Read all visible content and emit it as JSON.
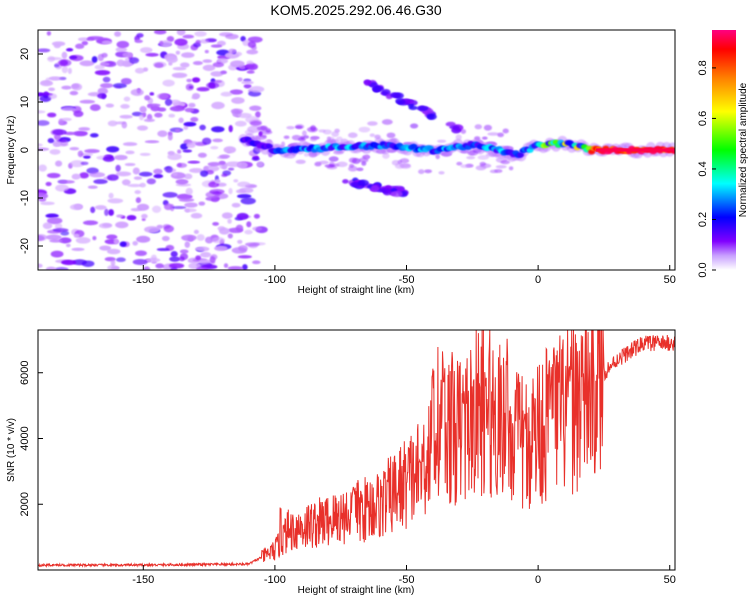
{
  "title": "KOM5.2025.292.06.46.G30",
  "chart_data": [
    {
      "type": "heatmap",
      "name": "spectrogram",
      "xlabel": "Height of straight line (km)",
      "ylabel": "Frequency (Hz)",
      "xlim": [
        -190,
        52
      ],
      "ylim": [
        -25,
        25
      ],
      "xticks": [
        -150,
        -100,
        -50,
        0,
        50
      ],
      "yticks": [
        -20,
        -10,
        0,
        10,
        20
      ],
      "colorbar": {
        "label": "Normalized spectral amplitude",
        "range": [
          0,
          0.95
        ],
        "ticks": [
          0.0,
          0.2,
          0.4,
          0.6,
          0.8
        ],
        "tick_labels": [
          "0.0",
          "0.2",
          "0.4",
          "0.6",
          "0.8"
        ],
        "colormap": [
          "#ffffff",
          "#8000ff",
          "#0000ff",
          "#00ffff",
          "#00ff00",
          "#ffff00",
          "#ff8000",
          "#ff0000",
          "#ff0080"
        ]
      },
      "description_features": {
        "noise_region_x": [
          -190,
          -105
        ],
        "main_track": [
          [
            -110,
            2
          ],
          [
            -100,
            0
          ],
          [
            -80,
            0.5
          ],
          [
            -60,
            1
          ],
          [
            -40,
            0
          ],
          [
            -25,
            1
          ],
          [
            -15,
            0
          ],
          [
            -8,
            -1
          ],
          [
            0,
            1
          ],
          [
            10,
            1.5
          ],
          [
            20,
            0
          ],
          [
            52,
            0
          ]
        ],
        "branch_upper": [
          [
            -65,
            14
          ],
          [
            -50,
            10
          ],
          [
            -40,
            7
          ],
          [
            -30,
            4
          ]
        ],
        "branch_lower": [
          [
            -75,
            -6
          ],
          [
            -60,
            -8
          ],
          [
            -50,
            -9
          ]
        ]
      }
    },
    {
      "type": "line",
      "name": "snr",
      "color": "#e8302a",
      "xlabel": "Height of straight line (km)",
      "ylabel": "SNR (10 * v/v)",
      "xlim": [
        -190,
        52
      ],
      "ylim": [
        0,
        7300
      ],
      "xticks": [
        -150,
        -100,
        -50,
        0,
        50
      ],
      "yticks": [
        2000,
        4000,
        6000
      ],
      "envelope": [
        [
          -190,
          150
        ],
        [
          -150,
          150
        ],
        [
          -110,
          180
        ],
        [
          -100,
          600
        ],
        [
          -95,
          1200
        ],
        [
          -80,
          1500
        ],
        [
          -60,
          2000
        ],
        [
          -45,
          3000
        ],
        [
          -38,
          4500
        ],
        [
          -30,
          4200
        ],
        [
          -20,
          5000
        ],
        [
          -12,
          4200
        ],
        [
          -5,
          3800
        ],
        [
          0,
          4300
        ],
        [
          10,
          4800
        ],
        [
          20,
          5600
        ],
        [
          30,
          6400
        ],
        [
          40,
          6900
        ],
        [
          52,
          6900
        ]
      ],
      "peaks": [
        [
          -98,
          2000
        ],
        [
          -70,
          2600
        ],
        [
          -45,
          3500
        ],
        [
          -40,
          6800
        ],
        [
          -36,
          6500
        ],
        [
          -28,
          5500
        ],
        [
          -20,
          6100
        ],
        [
          -15,
          6800
        ],
        [
          -12,
          7300
        ],
        [
          -5,
          4800
        ],
        [
          5,
          5800
        ],
        [
          12,
          6200
        ]
      ]
    }
  ]
}
